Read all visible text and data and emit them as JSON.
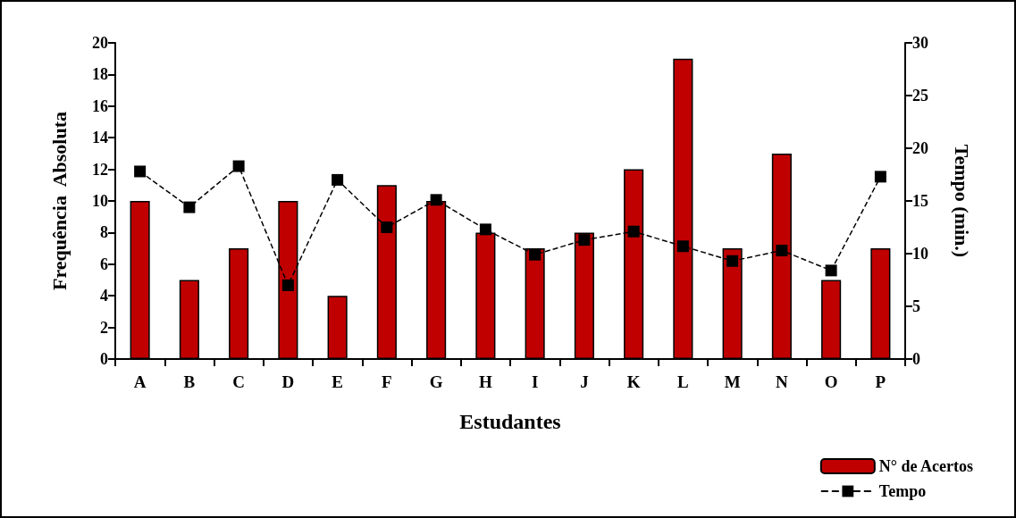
{
  "chart_data": {
    "type": "bar",
    "xlabel": "Estudantes",
    "ylabel": "Frequência  Absoluta",
    "y2label": "Tempo (min.)",
    "categories": [
      "A",
      "B",
      "C",
      "D",
      "E",
      "F",
      "G",
      "H",
      "I",
      "J",
      "K",
      "L",
      "M",
      "N",
      "O",
      "P"
    ],
    "series": [
      {
        "name": "N° de Acertos",
        "color": "#c00000",
        "values": [
          10,
          5,
          7,
          10,
          4,
          11,
          10,
          8,
          7,
          8,
          12,
          19,
          7,
          13,
          5,
          7
        ]
      },
      {
        "name": "Tempo",
        "type": "line",
        "axis": "y2",
        "color": "#000000",
        "marker": "square",
        "line_style": "dashed",
        "values": [
          17.8,
          14.4,
          18.3,
          7.0,
          17.0,
          12.5,
          15.1,
          12.3,
          9.9,
          11.3,
          12.1,
          10.7,
          9.3,
          10.3,
          8.4,
          17.3
        ]
      }
    ],
    "ylim": [
      0,
      20
    ],
    "yticks": [
      0,
      2,
      4,
      6,
      8,
      10,
      12,
      14,
      16,
      18,
      20
    ],
    "y2lim": [
      0,
      30
    ],
    "y2ticks": [
      0,
      5,
      10,
      15,
      20,
      25,
      30
    ],
    "grid": false,
    "legend": "bottom right"
  }
}
